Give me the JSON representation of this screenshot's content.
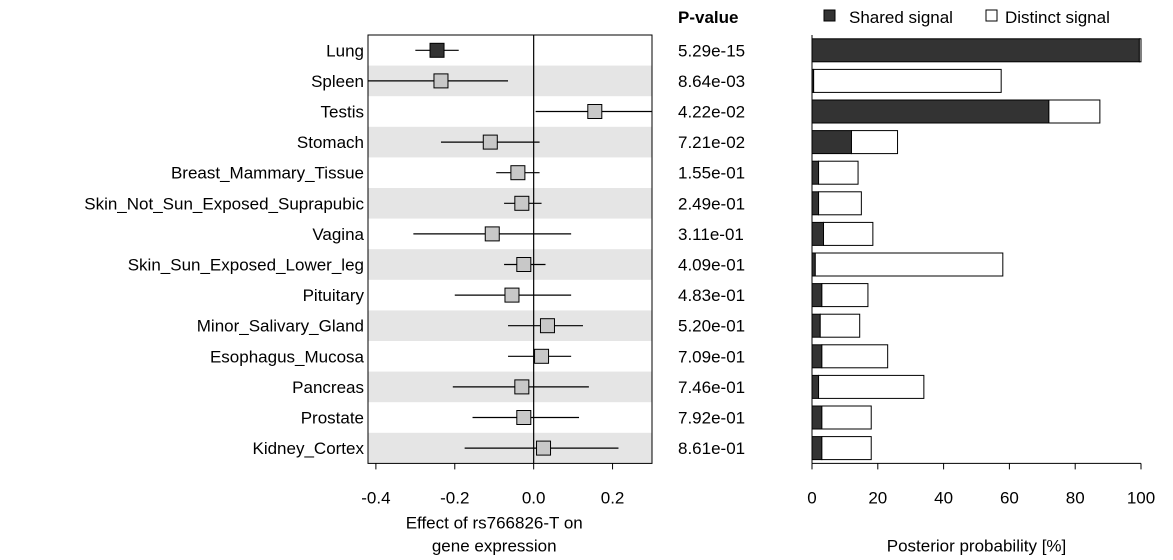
{
  "pvalue_header": "P-value",
  "legend": {
    "shared_label": "Shared signal",
    "distinct_label": "Distinct signal",
    "shared_color": "#333333",
    "distinct_color": "#ffffff"
  },
  "colors": {
    "band": "#e5e5e5",
    "square_default": "#c8c8c8",
    "square_highlight": "#333333",
    "line": "#000000"
  },
  "chart_data": [
    {
      "type": "forest",
      "title": "",
      "xlabel_lines": [
        "Effect of rs766826-T on",
        "gene expression"
      ],
      "xlim": [
        -0.42,
        0.3
      ],
      "xticks": [
        -0.4,
        -0.2,
        0.0,
        0.2
      ],
      "xtick_labels": [
        "-0.4",
        "-0.2",
        "0.0",
        "0.2"
      ],
      "zero_line": 0,
      "alternating_bands": true,
      "rows": [
        {
          "tissue": "Lung",
          "effect": -0.245,
          "ci_low": -0.3,
          "ci_high": -0.19,
          "pvalue": "5.29e-15",
          "highlight": true
        },
        {
          "tissue": "Spleen",
          "effect": -0.235,
          "ci_low": -0.42,
          "ci_high": -0.065,
          "pvalue": "8.64e-03",
          "highlight": false
        },
        {
          "tissue": "Testis",
          "effect": 0.155,
          "ci_low": 0.005,
          "ci_high": 0.3,
          "pvalue": "4.22e-02",
          "highlight": false
        },
        {
          "tissue": "Stomach",
          "effect": -0.11,
          "ci_low": -0.235,
          "ci_high": 0.015,
          "pvalue": "7.21e-02",
          "highlight": false
        },
        {
          "tissue": "Breast_Mammary_Tissue",
          "effect": -0.04,
          "ci_low": -0.095,
          "ci_high": 0.015,
          "pvalue": "1.55e-01",
          "highlight": false
        },
        {
          "tissue": "Skin_Not_Sun_Exposed_Suprapubic",
          "effect": -0.03,
          "ci_low": -0.075,
          "ci_high": 0.02,
          "pvalue": "2.49e-01",
          "highlight": false
        },
        {
          "tissue": "Vagina",
          "effect": -0.105,
          "ci_low": -0.305,
          "ci_high": 0.095,
          "pvalue": "3.11e-01",
          "highlight": false
        },
        {
          "tissue": "Skin_Sun_Exposed_Lower_leg",
          "effect": -0.025,
          "ci_low": -0.075,
          "ci_high": 0.03,
          "pvalue": "4.09e-01",
          "highlight": false
        },
        {
          "tissue": "Pituitary",
          "effect": -0.055,
          "ci_low": -0.2,
          "ci_high": 0.095,
          "pvalue": "4.83e-01",
          "highlight": false
        },
        {
          "tissue": "Minor_Salivary_Gland",
          "effect": 0.035,
          "ci_low": -0.065,
          "ci_high": 0.125,
          "pvalue": "5.20e-01",
          "highlight": false
        },
        {
          "tissue": "Esophagus_Mucosa",
          "effect": 0.02,
          "ci_low": -0.065,
          "ci_high": 0.095,
          "pvalue": "7.09e-01",
          "highlight": false
        },
        {
          "tissue": "Pancreas",
          "effect": -0.03,
          "ci_low": -0.205,
          "ci_high": 0.14,
          "pvalue": "7.46e-01",
          "highlight": false
        },
        {
          "tissue": "Prostate",
          "effect": -0.025,
          "ci_low": -0.155,
          "ci_high": 0.115,
          "pvalue": "7.92e-01",
          "highlight": false
        },
        {
          "tissue": "Kidney_Cortex",
          "effect": 0.025,
          "ci_low": -0.175,
          "ci_high": 0.215,
          "pvalue": "8.61e-01",
          "highlight": false
        }
      ]
    },
    {
      "type": "stacked_bar_horizontal",
      "title": "",
      "xlabel": "Posterior probability [%]",
      "xlim": [
        0,
        100
      ],
      "xticks": [
        0,
        20,
        40,
        60,
        80,
        100
      ],
      "xtick_labels": [
        "0",
        "20",
        "40",
        "60",
        "80",
        "100"
      ],
      "series": [
        {
          "name": "Shared signal",
          "values": [
            99.5,
            0.5,
            72,
            12,
            2,
            2,
            3.5,
            1,
            3,
            2.5,
            3,
            2,
            3,
            3
          ]
        },
        {
          "name": "Distinct signal",
          "values": [
            0.5,
            57,
            15.5,
            14,
            12,
            13,
            15,
            57,
            14,
            12,
            20,
            32,
            15,
            15
          ]
        }
      ]
    }
  ]
}
